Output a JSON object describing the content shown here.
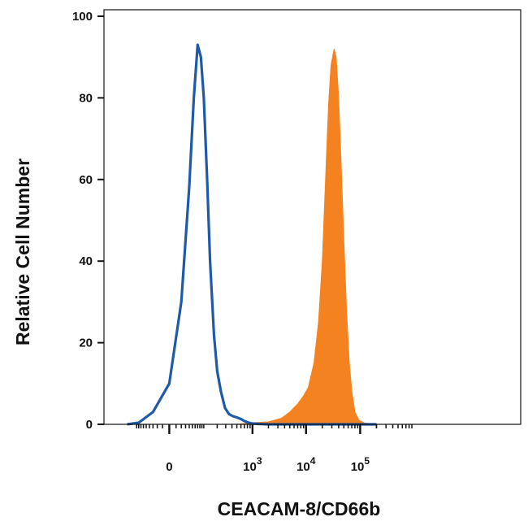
{
  "chart_data": {
    "type": "area",
    "xlabel": "CEACAM-8/CD66b",
    "ylabel": "Relative Cell Number",
    "x_scale": "biexponential",
    "x_ticks": [
      {
        "value": 0,
        "label": "0",
        "exp": ""
      },
      {
        "value": 1000,
        "label": "10",
        "exp": "3"
      },
      {
        "value": 10000,
        "label": "10",
        "exp": "4"
      },
      {
        "value": 100000,
        "label": "10",
        "exp": "5"
      }
    ],
    "y_ticks": [
      0,
      20,
      40,
      60,
      80,
      100
    ],
    "ylim": [
      0,
      100
    ],
    "grid": false,
    "legend": "none",
    "series": [
      {
        "style": "outline",
        "color": "#1f5aa8",
        "points": [
          [
            -150,
            0
          ],
          [
            -80,
            0.4
          ],
          [
            -30,
            3
          ],
          [
            0,
            10
          ],
          [
            20,
            30
          ],
          [
            40,
            58
          ],
          [
            55,
            80
          ],
          [
            70,
            93
          ],
          [
            85,
            90
          ],
          [
            100,
            80
          ],
          [
            120,
            60
          ],
          [
            140,
            40
          ],
          [
            170,
            22
          ],
          [
            200,
            13
          ],
          [
            240,
            8
          ],
          [
            290,
            4
          ],
          [
            350,
            2.5
          ],
          [
            420,
            2
          ],
          [
            500,
            1.7
          ],
          [
            600,
            1.3
          ],
          [
            700,
            0.8
          ],
          [
            850,
            0.4
          ],
          [
            1000,
            0.2
          ],
          [
            1300,
            0.1
          ],
          [
            2000,
            0
          ],
          [
            200000,
            0
          ]
        ]
      },
      {
        "style": "filled",
        "color": "#f58220",
        "points": [
          [
            -150,
            0
          ],
          [
            500,
            0
          ],
          [
            1000,
            0.4
          ],
          [
            2000,
            0.6
          ],
          [
            3500,
            1.5
          ],
          [
            5000,
            3
          ],
          [
            7000,
            5
          ],
          [
            9000,
            7
          ],
          [
            11000,
            9
          ],
          [
            14000,
            15
          ],
          [
            17000,
            25
          ],
          [
            20000,
            40
          ],
          [
            23000,
            60
          ],
          [
            26000,
            78
          ],
          [
            29000,
            88
          ],
          [
            33000,
            92
          ],
          [
            36000,
            90
          ],
          [
            40000,
            80
          ],
          [
            45000,
            62
          ],
          [
            50000,
            45
          ],
          [
            56000,
            28
          ],
          [
            63000,
            15
          ],
          [
            70000,
            8
          ],
          [
            80000,
            3
          ],
          [
            95000,
            1
          ],
          [
            120000,
            0.3
          ],
          [
            200000,
            0
          ]
        ]
      }
    ]
  }
}
